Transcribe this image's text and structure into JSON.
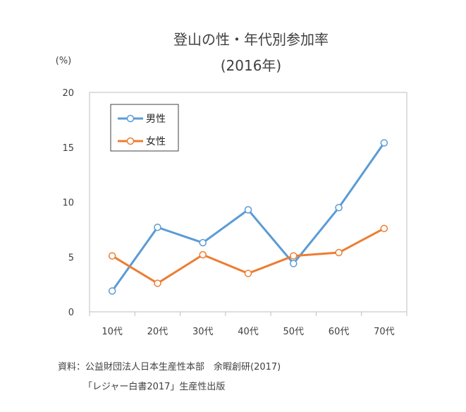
{
  "chart_data": {
    "type": "line",
    "title_lines": [
      "登山の性・年代別参加率",
      "(2016年)"
    ],
    "unit_label": "(%)",
    "categories": [
      "10代",
      "20代",
      "30代",
      "40代",
      "50代",
      "60代",
      "70代"
    ],
    "ylim": [
      0,
      20
    ],
    "yticks": [
      "0",
      "5",
      "10",
      "15",
      "20"
    ],
    "grid": false,
    "legend_position": "top-left",
    "series": [
      {
        "name": "男性",
        "color": "#5b9bd5",
        "values": [
          1.9,
          7.7,
          6.3,
          9.3,
          4.4,
          9.5,
          15.4
        ]
      },
      {
        "name": "女性",
        "color": "#ed7d31",
        "values": [
          5.1,
          2.6,
          5.2,
          3.5,
          5.1,
          5.4,
          7.6
        ]
      }
    ]
  },
  "source": {
    "line1": "資料：公益財団法人日本生産性本部　余暇創研(2017)",
    "line2": "「レジャー白書2017」生産性出版"
  }
}
